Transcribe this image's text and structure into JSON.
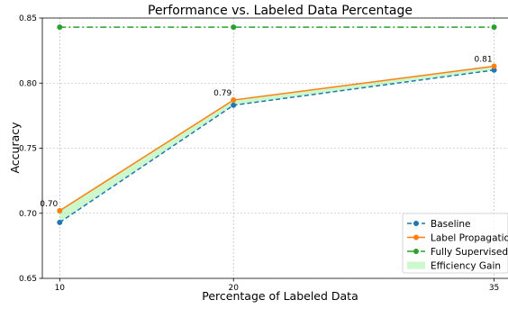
{
  "chart_data": {
    "type": "line",
    "title": "Performance vs. Labeled Data Percentage",
    "xlabel": "Percentage of Labeled Data",
    "ylabel": "Accuracy",
    "x": [
      10,
      20,
      35
    ],
    "xticks": [
      "10",
      "20",
      "35"
    ],
    "xlim": [
      9,
      35.8
    ],
    "ylim": [
      0.65,
      0.85
    ],
    "yticks": [
      "0.65",
      "0.70",
      "0.75",
      "0.80",
      "0.85"
    ],
    "grid": true,
    "legend_position": "bottom-right",
    "series": [
      {
        "name": "Baseline",
        "values": [
          0.693,
          0.783,
          0.81
        ],
        "color": "#1f77b4",
        "linestyle": "dashed",
        "marker": "circle"
      },
      {
        "name": "Label Propagation",
        "values": [
          0.702,
          0.787,
          0.813
        ],
        "color": "#ff7f0e",
        "linestyle": "solid",
        "marker": "circle"
      },
      {
        "name": "Fully Supervised",
        "values": [
          0.843,
          0.843,
          0.843
        ],
        "color": "#2ca02c",
        "linestyle": "dashdot",
        "marker": "circle"
      }
    ],
    "fill_between": {
      "name": "Efficiency Gain",
      "between": [
        "Baseline",
        "Label Propagation"
      ],
      "color": "#90ee90"
    },
    "data_labels": [
      {
        "x": 10,
        "y": 0.702,
        "text": "0.70"
      },
      {
        "x": 20,
        "y": 0.787,
        "text": "0.79"
      },
      {
        "x": 35,
        "y": 0.813,
        "text": "0.81"
      }
    ]
  }
}
